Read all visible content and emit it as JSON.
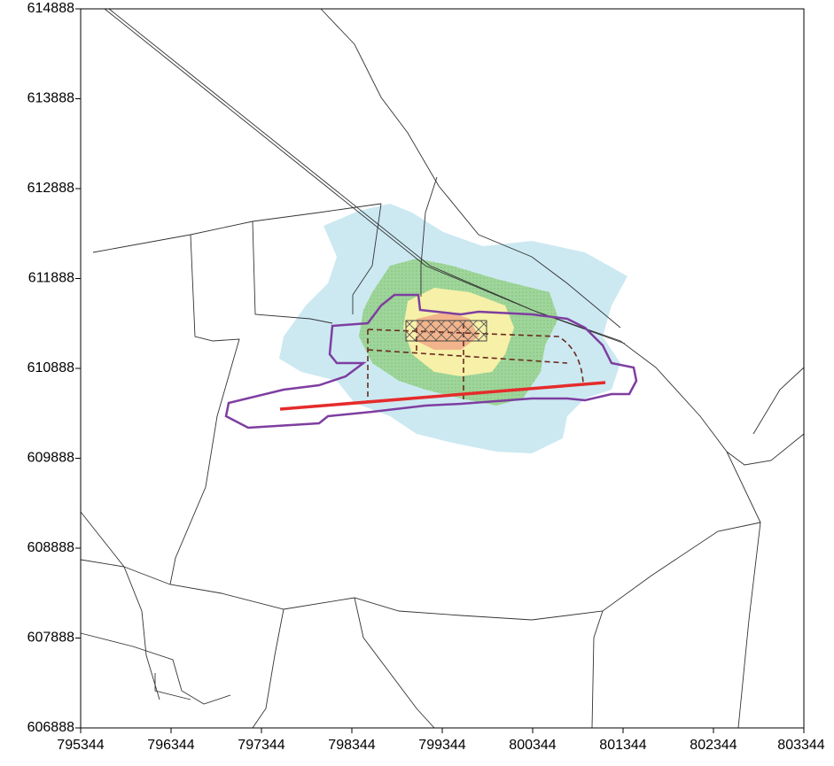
{
  "chart_data": {
    "type": "map",
    "xlim": [
      795344,
      803344
    ],
    "ylim": [
      606888,
      614888
    ],
    "xticks": [
      795344,
      796344,
      797344,
      798344,
      799344,
      800344,
      801344,
      802344,
      803344
    ],
    "yticks": [
      606888,
      607888,
      608888,
      609888,
      610888,
      611888,
      612888,
      613888,
      614888
    ]
  }
}
